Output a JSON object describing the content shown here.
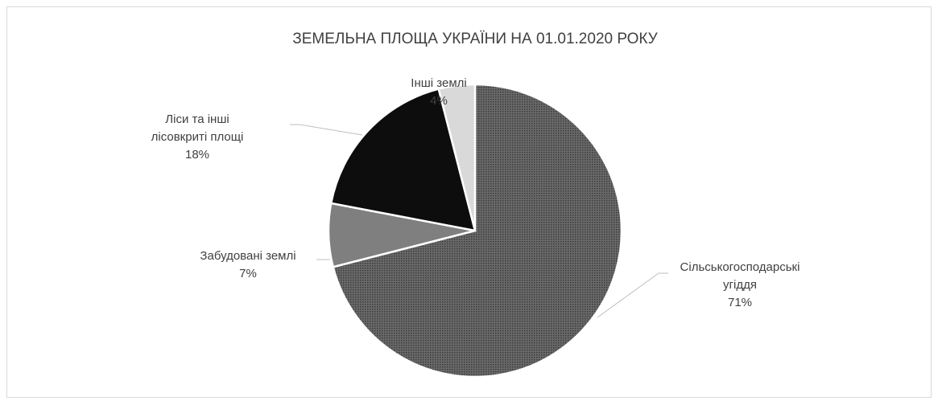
{
  "chart_data": {
    "type": "pie",
    "title": "ЗЕМЕЛЬНА ПЛОЩА УКРАЇНИ НА 01.01.2020 РОКУ",
    "categories": [
      "Сільськогосподарські угіддя",
      "Забудовані землі",
      "Ліси та інші лісовкриті площі",
      "Інші землі"
    ],
    "values": [
      71,
      7,
      18,
      4
    ],
    "value_labels": [
      "71%",
      "7%",
      "18%",
      "4%"
    ],
    "colors": [
      "#5c5c5c",
      "#7f7f7f",
      "#0d0d0d",
      "#d9d9d9"
    ]
  }
}
